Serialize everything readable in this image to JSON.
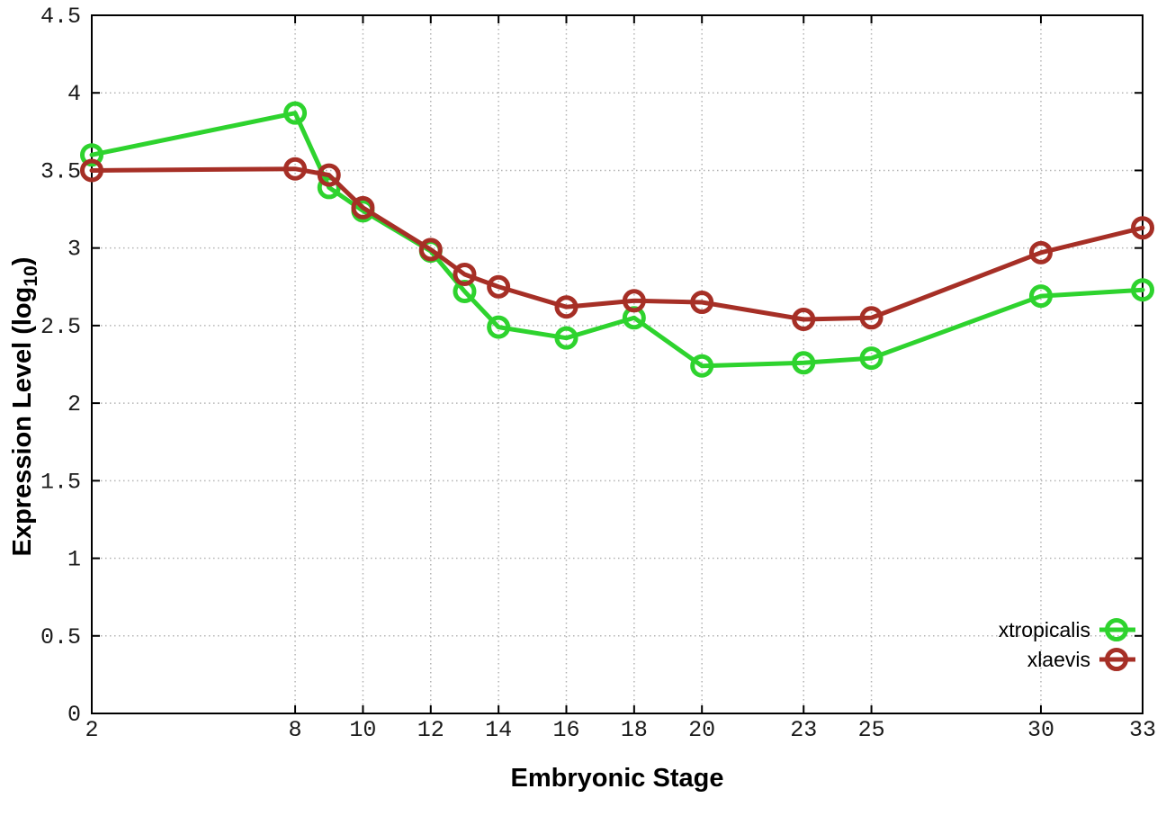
{
  "chart_data": {
    "type": "line",
    "title": "",
    "xlabel": "Embryonic Stage",
    "ylabel": "Expression Level (log10)",
    "ylabel_parts": {
      "prefix": "Expression Level (log",
      "sub": "10",
      "suffix": ")"
    },
    "x": [
      2,
      8,
      9,
      10,
      12,
      13,
      14,
      16,
      18,
      20,
      23,
      25,
      30,
      33
    ],
    "xticks": [
      2,
      8,
      10,
      12,
      14,
      16,
      18,
      20,
      23,
      25,
      30,
      33
    ],
    "yticks": [
      0,
      0.5,
      1,
      1.5,
      2,
      2.5,
      3,
      3.5,
      4,
      4.5
    ],
    "ytick_labels": [
      "0",
      "0.5",
      "1",
      "1.5",
      "2",
      "2.5",
      "3",
      "3.5",
      "4",
      "4.5"
    ],
    "xlim": [
      2,
      33
    ],
    "ylim": [
      0,
      4.5
    ],
    "grid": true,
    "legend_position": "bottom-right",
    "marker": "open-circle",
    "series": [
      {
        "name": "xtropicalis",
        "color": "#2ed32e",
        "values": [
          3.6,
          3.87,
          3.39,
          3.24,
          2.98,
          2.72,
          2.49,
          2.42,
          2.55,
          2.24,
          2.26,
          2.29,
          2.69,
          2.73
        ]
      },
      {
        "name": "xlaevis",
        "color": "#a62f26",
        "values": [
          3.5,
          3.51,
          3.47,
          3.26,
          2.99,
          2.83,
          2.75,
          2.62,
          2.66,
          2.65,
          2.54,
          2.55,
          2.97,
          3.13
        ]
      }
    ],
    "style": {
      "background": "#ffffff",
      "axis_color": "#000000",
      "grid_color": "#b3b3b3",
      "tick_text_color": "#1a1a1a"
    }
  }
}
